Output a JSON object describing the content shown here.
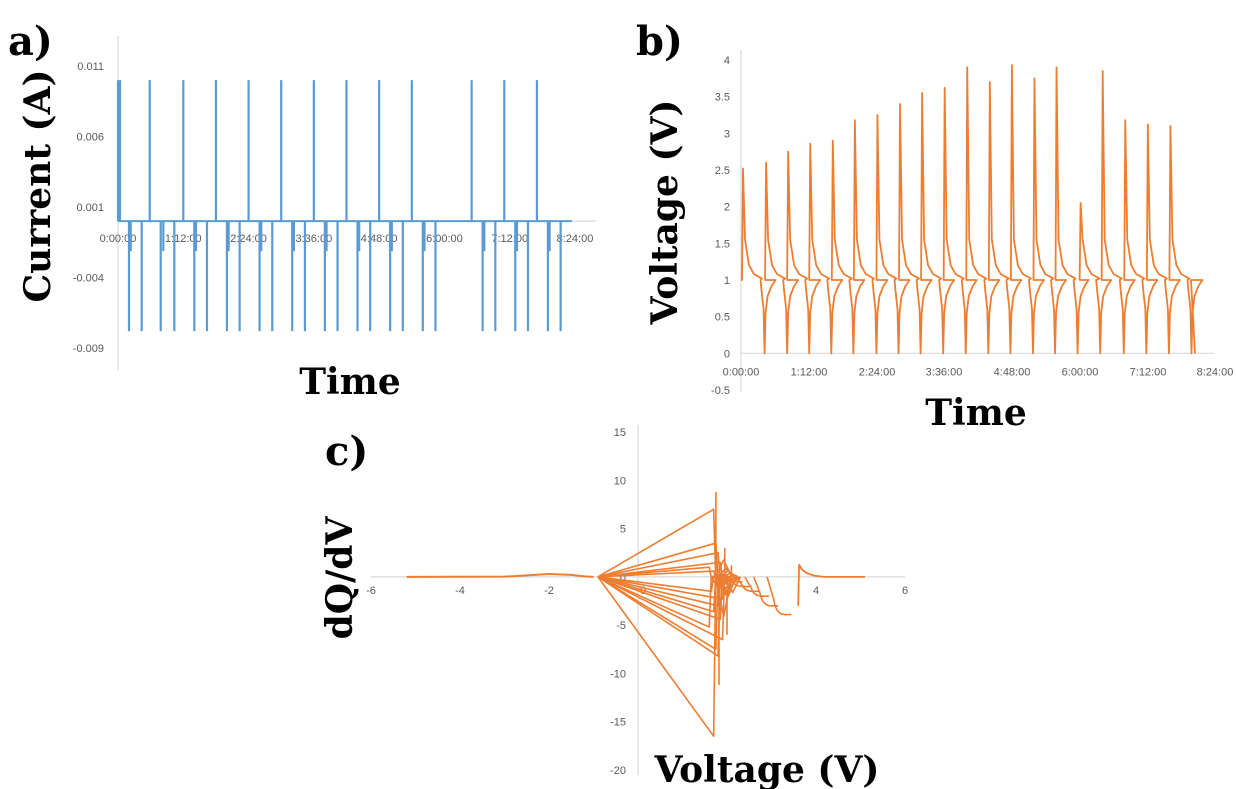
{
  "colors": {
    "current": "#5b9bd5",
    "voltage": "#ed7d31",
    "axis": "#d9d9d9",
    "tick": "#595959"
  },
  "chart_data": [
    {
      "type": "line",
      "panel_label": "a)",
      "xlabel": "Time",
      "ylabel": "Current (A)",
      "x_ticks": [
        "0:00:00",
        "1:12:00",
        "2:24:00",
        "3:36:00",
        "4:48:00",
        "6:00:00",
        "7:12:00",
        "8:24:00"
      ],
      "y_ticks": [
        "0.011",
        "0.006",
        "0.001",
        "-0.004",
        "-0.009"
      ],
      "xlim_minutes": [
        0,
        504
      ],
      "ylim": [
        -0.009,
        0.011
      ],
      "grid": false,
      "series": [
        {
          "baseline": 0,
          "charge_current": 0.01,
          "discharge_current": -0.0078,
          "pulse_times_minutes": [
            0,
            14,
            35,
            50,
            72,
            86,
            108,
            122,
            144,
            158,
            180,
            194,
            216,
            230,
            252,
            266,
            288,
            302,
            324,
            338,
            390,
            404,
            426,
            440,
            462,
            476
          ]
        }
      ]
    },
    {
      "type": "line",
      "panel_label": "b)",
      "xlabel": "Time",
      "ylabel": "Voltage (V)",
      "x_ticks": [
        "0:00:00",
        "1:12:00",
        "2:24:00",
        "3:36:00",
        "4:48:00",
        "6:00:00",
        "7:12:00",
        "8:24:00"
      ],
      "y_ticks": [
        "4",
        "3.5",
        "3",
        "2.5",
        "2",
        "1.5",
        "1",
        "0.5",
        "0",
        "-0.5"
      ],
      "xlim_minutes": [
        0,
        504
      ],
      "ylim": [
        -0.5,
        4
      ],
      "grid": false,
      "series": [
        {
          "rest_voltage": 1.0,
          "charge_pulses": [
            {
              "t": 2,
              "peak": 2.52
            },
            {
              "t": 48,
              "peak": 2.6
            },
            {
              "t": 92,
              "peak": 2.75
            },
            {
              "t": 136,
              "peak": 2.86
            },
            {
              "t": 181,
              "peak": 2.9
            },
            {
              "t": 225,
              "peak": 3.18
            },
            {
              "t": 270,
              "peak": 3.25
            },
            {
              "t": 315,
              "peak": 3.4
            },
            {
              "t": 359,
              "peak": 3.55
            },
            {
              "t": 404,
              "peak": 3.62
            },
            {
              "t": 449,
              "peak": 3.9
            },
            {
              "t": 494,
              "peak": 3.7
            },
            {
              "t": 538,
              "peak": 3.93
            },
            {
              "t": 583,
              "peak": 3.75
            },
            {
              "t": 627,
              "peak": 3.9
            },
            {
              "t": 675,
              "peak": 2.05
            },
            {
              "t": 719,
              "peak": 3.85
            },
            {
              "t": 764,
              "peak": 3.18
            },
            {
              "t": 809,
              "peak": 3.12
            },
            {
              "t": 854,
              "peak": 3.1
            }
          ],
          "discharge_times": [
            45,
            90,
            134,
            178,
            222,
            268,
            312,
            356,
            401,
            446,
            491,
            535,
            580,
            624,
            669,
            714,
            761,
            806,
            851,
            896
          ],
          "discharge_min": 0.0,
          "end_time": 905
        }
      ]
    },
    {
      "type": "line",
      "panel_label": "c)",
      "xlabel": "Voltage (V)",
      "ylabel": "dQ/dV",
      "x_ticks": [
        "-6",
        "-4",
        "-2",
        "0",
        "2",
        "4",
        "6"
      ],
      "y_ticks": [
        "15",
        "10",
        "5",
        "0",
        "-5",
        "-10",
        "-15",
        "-20"
      ],
      "xlim": [
        -6,
        6
      ],
      "ylim": [
        -20,
        15
      ],
      "grid": false,
      "series": [
        {
          "tail_curve": [
            [
              -5.2,
              0
            ],
            [
              -3,
              0.02
            ],
            [
              -2.5,
              0.15
            ],
            [
              -2,
              0.3
            ],
            [
              -1.5,
              0.2
            ],
            [
              -1.2,
              0.05
            ],
            [
              -1,
              0
            ]
          ],
          "origin_point": [
            -0.9,
            0
          ],
          "positive_peaks": [
            [
              1.7,
              7.0
            ],
            [
              1.75,
              3.5
            ],
            [
              1.8,
              2.5
            ],
            [
              1.85,
              1.5
            ],
            [
              1.6,
              1.0
            ],
            [
              1.7,
              0.6
            ]
          ],
          "negative_peaks": [
            [
              1.7,
              -16.5
            ],
            [
              1.8,
              -8.2
            ],
            [
              1.75,
              -7.5
            ],
            [
              1.9,
              -6.5
            ],
            [
              1.6,
              -5.2
            ],
            [
              1.85,
              -4.4
            ],
            [
              1.7,
              -3.6
            ],
            [
              1.8,
              -3.0
            ],
            [
              1.9,
              -2.3
            ],
            [
              1.65,
              -1.5
            ]
          ],
          "cluster_spikes": [
            [
              1.75,
              8.8
            ],
            [
              1.82,
              -11.2
            ],
            [
              2.0,
              -6.0
            ],
            [
              1.95,
              3.0
            ],
            [
              2.1,
              1.2
            ]
          ],
          "relaxations": [
            [
              2.2,
              -0.5
            ],
            [
              2.4,
              -1.0
            ],
            [
              2.6,
              -1.5
            ],
            [
              2.8,
              -2.0
            ],
            [
              3.0,
              -3.0
            ],
            [
              3.3,
              -3.9
            ]
          ],
          "high_voltage_spike": [
            [
              3.6,
              -3.0
            ],
            [
              3.62,
              1.3
            ]
          ],
          "high_tail": [
            3.62,
            5.1
          ]
        }
      ]
    }
  ]
}
